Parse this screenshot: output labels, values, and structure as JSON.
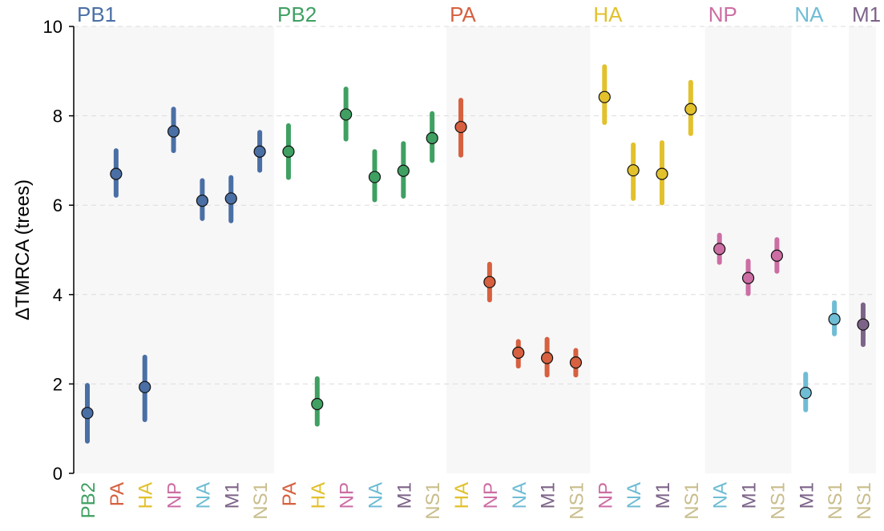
{
  "colors": {
    "PB1": "#4a6fa5",
    "PB2": "#3fa062",
    "PA": "#d6603f",
    "HA": "#e2c12c",
    "NP": "#cc6ea4",
    "NA": "#6fbdd4",
    "M1": "#7d6388",
    "NS1": "#c9bd8c"
  },
  "chart_data": {
    "type": "scatter",
    "ylabel": "ΔTMRCA (trees)",
    "ylim": [
      0,
      10
    ],
    "yticks": [
      "0",
      "2",
      "4",
      "6",
      "8",
      "10"
    ],
    "grid": true,
    "groups": [
      {
        "name": "PB1",
        "shaded": true,
        "points": [
          {
            "label": "PB2",
            "y": 1.35,
            "lo": 0.72,
            "hi": 1.97
          },
          {
            "label": "PA",
            "y": 6.7,
            "lo": 6.22,
            "hi": 7.22
          },
          {
            "label": "HA",
            "y": 1.93,
            "lo": 1.2,
            "hi": 2.6
          },
          {
            "label": "NP",
            "y": 7.65,
            "lo": 7.22,
            "hi": 8.15
          },
          {
            "label": "NA",
            "y": 6.1,
            "lo": 5.7,
            "hi": 6.55
          },
          {
            "label": "M1",
            "y": 6.15,
            "lo": 5.65,
            "hi": 6.62
          },
          {
            "label": "NS1",
            "y": 7.2,
            "lo": 6.78,
            "hi": 7.63
          }
        ]
      },
      {
        "name": "PB2",
        "shaded": false,
        "points": [
          {
            "label": "PA",
            "y": 7.2,
            "lo": 6.62,
            "hi": 7.78
          },
          {
            "label": "HA",
            "y": 1.55,
            "lo": 1.1,
            "hi": 2.12
          },
          {
            "label": "NP",
            "y": 8.03,
            "lo": 7.48,
            "hi": 8.6
          },
          {
            "label": "NA",
            "y": 6.63,
            "lo": 6.12,
            "hi": 7.2
          },
          {
            "label": "M1",
            "y": 6.77,
            "lo": 6.2,
            "hi": 7.38
          },
          {
            "label": "NS1",
            "y": 7.5,
            "lo": 7.0,
            "hi": 8.05
          }
        ]
      },
      {
        "name": "PA",
        "shaded": true,
        "points": [
          {
            "label": "HA",
            "y": 7.75,
            "lo": 7.12,
            "hi": 8.35
          },
          {
            "label": "NP",
            "y": 4.28,
            "lo": 3.88,
            "hi": 4.68
          },
          {
            "label": "NA",
            "y": 2.7,
            "lo": 2.4,
            "hi": 2.95
          },
          {
            "label": "M1",
            "y": 2.58,
            "lo": 2.2,
            "hi": 3.0
          },
          {
            "label": "NS1",
            "y": 2.48,
            "lo": 2.2,
            "hi": 2.75
          }
        ]
      },
      {
        "name": "HA",
        "shaded": false,
        "points": [
          {
            "label": "NP",
            "y": 8.42,
            "lo": 7.85,
            "hi": 9.1
          },
          {
            "label": "NA",
            "y": 6.78,
            "lo": 6.15,
            "hi": 7.35
          },
          {
            "label": "M1",
            "y": 6.7,
            "lo": 6.05,
            "hi": 7.4
          },
          {
            "label": "NS1",
            "y": 8.15,
            "lo": 7.6,
            "hi": 8.75
          }
        ]
      },
      {
        "name": "NP",
        "shaded": true,
        "points": [
          {
            "label": "NA",
            "y": 5.02,
            "lo": 4.72,
            "hi": 5.33
          },
          {
            "label": "M1",
            "y": 4.37,
            "lo": 4.02,
            "hi": 4.75
          },
          {
            "label": "NS1",
            "y": 4.87,
            "lo": 4.52,
            "hi": 5.23
          }
        ]
      },
      {
        "name": "NA",
        "shaded": false,
        "points": [
          {
            "label": "M1",
            "y": 1.8,
            "lo": 1.42,
            "hi": 2.22
          },
          {
            "label": "NS1",
            "y": 3.45,
            "lo": 3.12,
            "hi": 3.82
          }
        ]
      },
      {
        "name": "M1",
        "shaded": true,
        "points": [
          {
            "label": "NS1",
            "y": 3.33,
            "lo": 2.88,
            "hi": 3.77
          }
        ]
      }
    ]
  }
}
